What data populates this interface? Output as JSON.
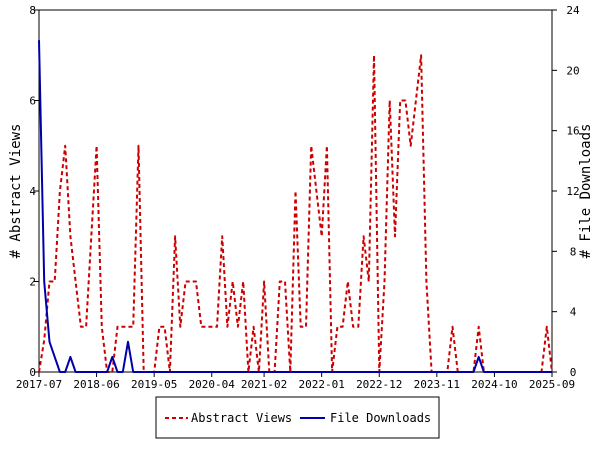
{
  "chart_data": {
    "type": "line",
    "x_axis": {
      "tick_labels": [
        "2017-07",
        "2018-06",
        "2019-05",
        "2020-04",
        "2021-02",
        "2022-01",
        "2022-12",
        "2023-11",
        "2024-10",
        "2025-09"
      ],
      "range": [
        "2017-07",
        "2025-09"
      ]
    },
    "y_left": {
      "label": "# Abstract Views",
      "range": [
        0,
        8
      ],
      "ticks": [
        0,
        2,
        4,
        6,
        8
      ]
    },
    "y_right": {
      "label": "# File Downloads",
      "range": [
        0,
        24
      ],
      "ticks": [
        0,
        4,
        8,
        12,
        16,
        20,
        24
      ]
    },
    "grid": false,
    "legend": {
      "placement": "bottom"
    },
    "series": [
      {
        "name": "Abstract Views",
        "axis": "left",
        "color": "#cc0000",
        "style": "dashed",
        "points": [
          [
            "2017-07",
            0
          ],
          [
            "2017-08",
            0.7
          ],
          [
            "2017-09",
            2
          ],
          [
            "2017-10",
            2
          ],
          [
            "2017-11",
            4
          ],
          [
            "2017-12",
            5
          ],
          [
            "2018-01",
            3
          ],
          [
            "2018-02",
            2
          ],
          [
            "2018-03",
            1
          ],
          [
            "2018-04",
            1
          ],
          [
            "2018-05",
            3
          ],
          [
            "2018-06",
            5
          ],
          [
            "2018-07",
            1
          ],
          [
            "2018-08",
            0
          ],
          [
            "2018-09",
            0
          ],
          [
            "2018-10",
            1
          ],
          [
            "2018-11",
            1
          ],
          [
            "2018-12",
            1
          ],
          [
            "2019-01",
            1
          ],
          [
            "2019-02",
            5
          ],
          [
            "2019-03",
            0
          ],
          [
            "2019-04",
            0
          ],
          [
            "2019-05",
            0
          ],
          [
            "2019-06",
            1
          ],
          [
            "2019-07",
            1
          ],
          [
            "2019-08",
            0
          ],
          [
            "2019-09",
            3
          ],
          [
            "2019-10",
            1
          ],
          [
            "2019-11",
            2
          ],
          [
            "2019-12",
            2
          ],
          [
            "2020-01",
            2
          ],
          [
            "2020-02",
            1
          ],
          [
            "2020-03",
            1
          ],
          [
            "2020-04",
            1
          ],
          [
            "2020-05",
            1
          ],
          [
            "2020-06",
            3
          ],
          [
            "2020-07",
            1
          ],
          [
            "2020-08",
            2
          ],
          [
            "2020-09",
            1
          ],
          [
            "2020-10",
            2
          ],
          [
            "2020-11",
            0
          ],
          [
            "2020-12",
            1
          ],
          [
            "2021-01",
            0
          ],
          [
            "2021-02",
            2
          ],
          [
            "2021-03",
            0
          ],
          [
            "2021-04",
            0
          ],
          [
            "2021-05",
            2
          ],
          [
            "2021-06",
            2
          ],
          [
            "2021-07",
            0
          ],
          [
            "2021-08",
            4
          ],
          [
            "2021-09",
            1
          ],
          [
            "2021-10",
            1
          ],
          [
            "2021-11",
            5
          ],
          [
            "2021-12",
            4
          ],
          [
            "2022-01",
            3
          ],
          [
            "2022-02",
            5
          ],
          [
            "2022-03",
            0
          ],
          [
            "2022-04",
            1
          ],
          [
            "2022-05",
            1
          ],
          [
            "2022-06",
            2
          ],
          [
            "2022-07",
            1
          ],
          [
            "2022-08",
            1
          ],
          [
            "2022-09",
            3
          ],
          [
            "2022-10",
            2
          ],
          [
            "2022-11",
            7
          ],
          [
            "2022-12",
            0
          ],
          [
            "2023-01",
            2
          ],
          [
            "2023-02",
            6
          ],
          [
            "2023-03",
            3
          ],
          [
            "2023-04",
            6
          ],
          [
            "2023-05",
            6
          ],
          [
            "2023-06",
            5
          ],
          [
            "2023-07",
            6
          ],
          [
            "2023-08",
            7
          ],
          [
            "2023-09",
            2
          ],
          [
            "2023-10",
            0
          ],
          [
            "2023-11",
            0
          ],
          [
            "2023-12",
            0
          ],
          [
            "2024-01",
            0
          ],
          [
            "2024-02",
            1
          ],
          [
            "2024-03",
            0
          ],
          [
            "2024-04",
            0
          ],
          [
            "2024-05",
            0
          ],
          [
            "2024-06",
            0
          ],
          [
            "2024-07",
            1
          ],
          [
            "2024-08",
            0
          ],
          [
            "2024-09",
            0
          ],
          [
            "2024-10",
            0
          ],
          [
            "2024-11",
            0
          ],
          [
            "2024-12",
            0
          ],
          [
            "2025-01",
            0
          ],
          [
            "2025-02",
            0
          ],
          [
            "2025-03",
            0
          ],
          [
            "2025-04",
            0
          ],
          [
            "2025-05",
            0
          ],
          [
            "2025-06",
            0
          ],
          [
            "2025-07",
            0
          ],
          [
            "2025-08",
            1
          ],
          [
            "2025-09",
            0
          ]
        ]
      },
      {
        "name": "File Downloads",
        "axis": "right",
        "color": "#0000aa",
        "style": "solid",
        "points": [
          [
            "2017-07",
            22
          ],
          [
            "2017-08",
            6
          ],
          [
            "2017-09",
            2
          ],
          [
            "2017-10",
            1
          ],
          [
            "2017-11",
            0
          ],
          [
            "2017-12",
            0
          ],
          [
            "2018-01",
            1
          ],
          [
            "2018-02",
            0
          ],
          [
            "2018-03",
            0
          ],
          [
            "2018-04",
            0
          ],
          [
            "2018-05",
            0
          ],
          [
            "2018-06",
            0
          ],
          [
            "2018-07",
            0
          ],
          [
            "2018-08",
            0
          ],
          [
            "2018-09",
            1
          ],
          [
            "2018-10",
            0
          ],
          [
            "2018-11",
            0
          ],
          [
            "2018-12",
            2
          ],
          [
            "2019-01",
            0
          ],
          [
            "2019-02",
            0
          ],
          [
            "2019-03",
            0
          ],
          [
            "2019-04",
            0
          ],
          [
            "2019-05",
            0
          ],
          [
            "2019-06",
            0
          ],
          [
            "2019-07",
            0
          ],
          [
            "2019-08",
            0
          ],
          [
            "2019-09",
            0
          ],
          [
            "2019-10",
            0
          ],
          [
            "2019-11",
            0
          ],
          [
            "2019-12",
            0
          ],
          [
            "2020-01",
            0
          ],
          [
            "2020-02",
            0
          ],
          [
            "2020-03",
            0
          ],
          [
            "2020-04",
            0
          ],
          [
            "2020-05",
            0
          ],
          [
            "2020-06",
            0
          ],
          [
            "2020-07",
            0
          ],
          [
            "2020-08",
            0
          ],
          [
            "2020-09",
            0
          ],
          [
            "2020-10",
            0
          ],
          [
            "2020-11",
            0
          ],
          [
            "2020-12",
            0
          ],
          [
            "2021-01",
            0
          ],
          [
            "2021-02",
            0
          ],
          [
            "2021-03",
            0
          ],
          [
            "2021-04",
            0
          ],
          [
            "2021-05",
            0
          ],
          [
            "2021-06",
            0
          ],
          [
            "2021-07",
            0
          ],
          [
            "2021-08",
            0
          ],
          [
            "2021-09",
            0
          ],
          [
            "2021-10",
            0
          ],
          [
            "2021-11",
            0
          ],
          [
            "2021-12",
            0
          ],
          [
            "2022-01",
            0
          ],
          [
            "2022-02",
            0
          ],
          [
            "2022-03",
            0
          ],
          [
            "2022-04",
            0
          ],
          [
            "2022-05",
            0
          ],
          [
            "2022-06",
            0
          ],
          [
            "2022-07",
            0
          ],
          [
            "2022-08",
            0
          ],
          [
            "2022-09",
            0
          ],
          [
            "2022-10",
            0
          ],
          [
            "2022-11",
            0
          ],
          [
            "2022-12",
            0
          ],
          [
            "2023-01",
            0
          ],
          [
            "2023-02",
            0
          ],
          [
            "2023-03",
            0
          ],
          [
            "2023-04",
            0
          ],
          [
            "2023-05",
            0
          ],
          [
            "2023-06",
            0
          ],
          [
            "2023-07",
            0
          ],
          [
            "2023-08",
            0
          ],
          [
            "2023-09",
            0
          ],
          [
            "2023-10",
            0
          ],
          [
            "2023-11",
            0
          ],
          [
            "2023-12",
            0
          ],
          [
            "2024-01",
            0
          ],
          [
            "2024-02",
            0
          ],
          [
            "2024-03",
            0
          ],
          [
            "2024-04",
            0
          ],
          [
            "2024-05",
            0
          ],
          [
            "2024-06",
            0
          ],
          [
            "2024-07",
            1
          ],
          [
            "2024-08",
            0
          ],
          [
            "2024-09",
            0
          ],
          [
            "2024-10",
            0
          ],
          [
            "2024-11",
            0
          ],
          [
            "2024-12",
            0
          ],
          [
            "2025-01",
            0
          ],
          [
            "2025-02",
            0
          ],
          [
            "2025-03",
            0
          ],
          [
            "2025-04",
            0
          ],
          [
            "2025-05",
            0
          ],
          [
            "2025-06",
            0
          ],
          [
            "2025-07",
            0
          ],
          [
            "2025-08",
            0
          ],
          [
            "2025-09",
            0
          ]
        ]
      }
    ]
  }
}
